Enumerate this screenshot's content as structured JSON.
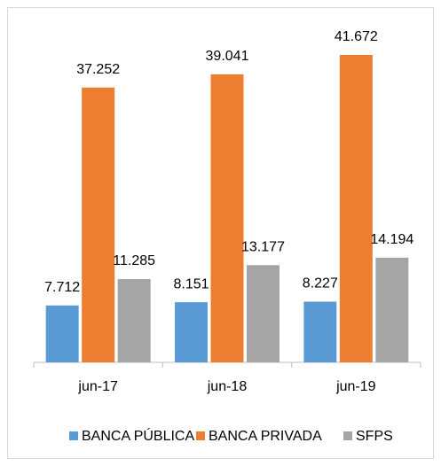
{
  "chart_data": {
    "type": "bar",
    "categories": [
      "jun-17",
      "jun-18",
      "jun-19"
    ],
    "series": [
      {
        "name": "BANCA PÚBLICA",
        "color": "#5b9bd5",
        "values": [
          7712,
          8151,
          8227
        ],
        "value_labels": [
          "7.712",
          "8.151",
          "8.227"
        ]
      },
      {
        "name": "BANCA PRIVADA",
        "color": "#ed7d31",
        "values": [
          37252,
          39041,
          41672
        ],
        "value_labels": [
          "37.252",
          "39.041",
          "41.672"
        ]
      },
      {
        "name": "SFPS",
        "color": "#a5a5a5",
        "values": [
          11285,
          13177,
          14194
        ],
        "value_labels": [
          "11.285",
          "13.177",
          "14.194"
        ]
      }
    ],
    "legend": "bottom"
  }
}
